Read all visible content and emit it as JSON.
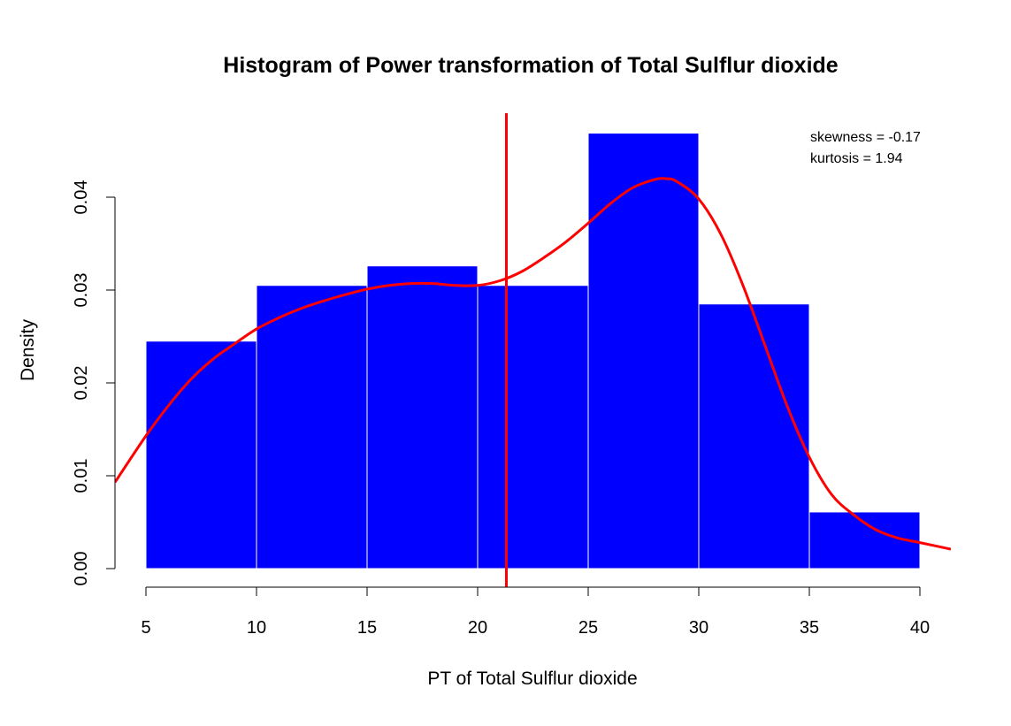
{
  "chart_data": {
    "type": "bar",
    "title": "Histogram of Power transformation of Total Sulflur dioxide",
    "xlabel": "PT of Total Sulflur dioxide",
    "ylabel": "Density",
    "bins": [
      {
        "start": 5,
        "end": 10,
        "density": 0.0245
      },
      {
        "start": 10,
        "end": 15,
        "density": 0.0305
      },
      {
        "start": 15,
        "end": 20,
        "density": 0.0326
      },
      {
        "start": 20,
        "end": 25,
        "density": 0.0305
      },
      {
        "start": 25,
        "end": 30,
        "density": 0.0469
      },
      {
        "start": 30,
        "end": 35,
        "density": 0.0285
      },
      {
        "start": 35,
        "end": 40,
        "density": 0.0061
      }
    ],
    "density_curve": {
      "x": [
        3.6,
        5,
        6,
        7,
        8,
        9,
        10,
        11,
        12,
        13,
        14,
        15,
        16,
        17,
        18,
        19,
        20,
        21,
        22,
        23,
        24,
        25,
        26,
        27,
        28,
        28.5,
        29,
        30,
        31,
        32,
        33,
        34,
        35,
        36,
        37,
        38,
        39,
        40,
        41.4
      ],
      "y": [
        0.0093,
        0.0143,
        0.0175,
        0.0203,
        0.0225,
        0.0242,
        0.0258,
        0.027,
        0.028,
        0.0288,
        0.0295,
        0.0301,
        0.0305,
        0.0307,
        0.0307,
        0.0305,
        0.0305,
        0.031,
        0.032,
        0.0335,
        0.0352,
        0.0372,
        0.0393,
        0.041,
        0.0419,
        0.042,
        0.0417,
        0.0398,
        0.036,
        0.0305,
        0.024,
        0.0175,
        0.012,
        0.008,
        0.0058,
        0.0042,
        0.0033,
        0.0028,
        0.0021
      ]
    },
    "vline_x": 21.3,
    "xticks": [
      5,
      10,
      15,
      20,
      25,
      30,
      35,
      40
    ],
    "yticks": [
      "0.00",
      "0.01",
      "0.02",
      "0.03",
      "0.04"
    ],
    "xlim": [
      3.6,
      41.4
    ],
    "ylim": [
      0,
      0.0492
    ],
    "grid": false,
    "legend": "none",
    "bar_color": "#0000FF",
    "bar_border_color": "#FFFFFF",
    "line_color": "#FF0000",
    "annotations": [
      "skewness = -0.17",
      "kurtosis = 1.94"
    ]
  }
}
